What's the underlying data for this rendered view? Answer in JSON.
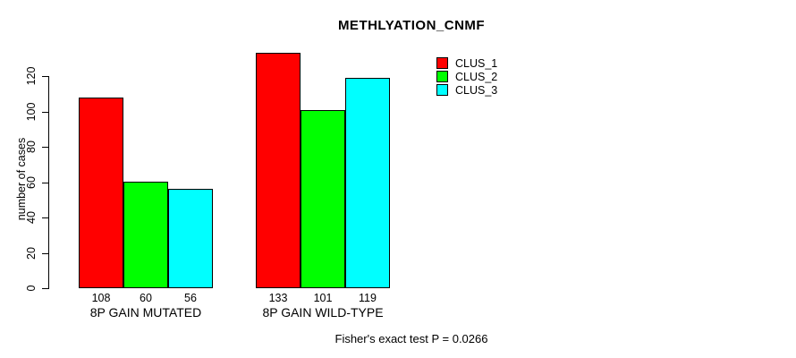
{
  "chart_data": {
    "type": "bar",
    "title": "METHLYATION_CNMF",
    "ylabel": "number of cases",
    "xlabel": "",
    "ylim": [
      0,
      133
    ],
    "yticks": [
      0,
      20,
      40,
      60,
      80,
      100,
      120
    ],
    "grid": false,
    "legend_position": "top-right-inside",
    "categories": [
      "8P GAIN MUTATED",
      "8P GAIN WILD-TYPE"
    ],
    "series": [
      {
        "name": "CLUS_1",
        "color": "#ff0000",
        "values": [
          108,
          133
        ]
      },
      {
        "name": "CLUS_2",
        "color": "#00ff00",
        "values": [
          60,
          101
        ]
      },
      {
        "name": "CLUS_3",
        "color": "#00ffff",
        "values": [
          56,
          119
        ]
      }
    ],
    "annotation": "Fisher's exact test P = 0.0266"
  }
}
